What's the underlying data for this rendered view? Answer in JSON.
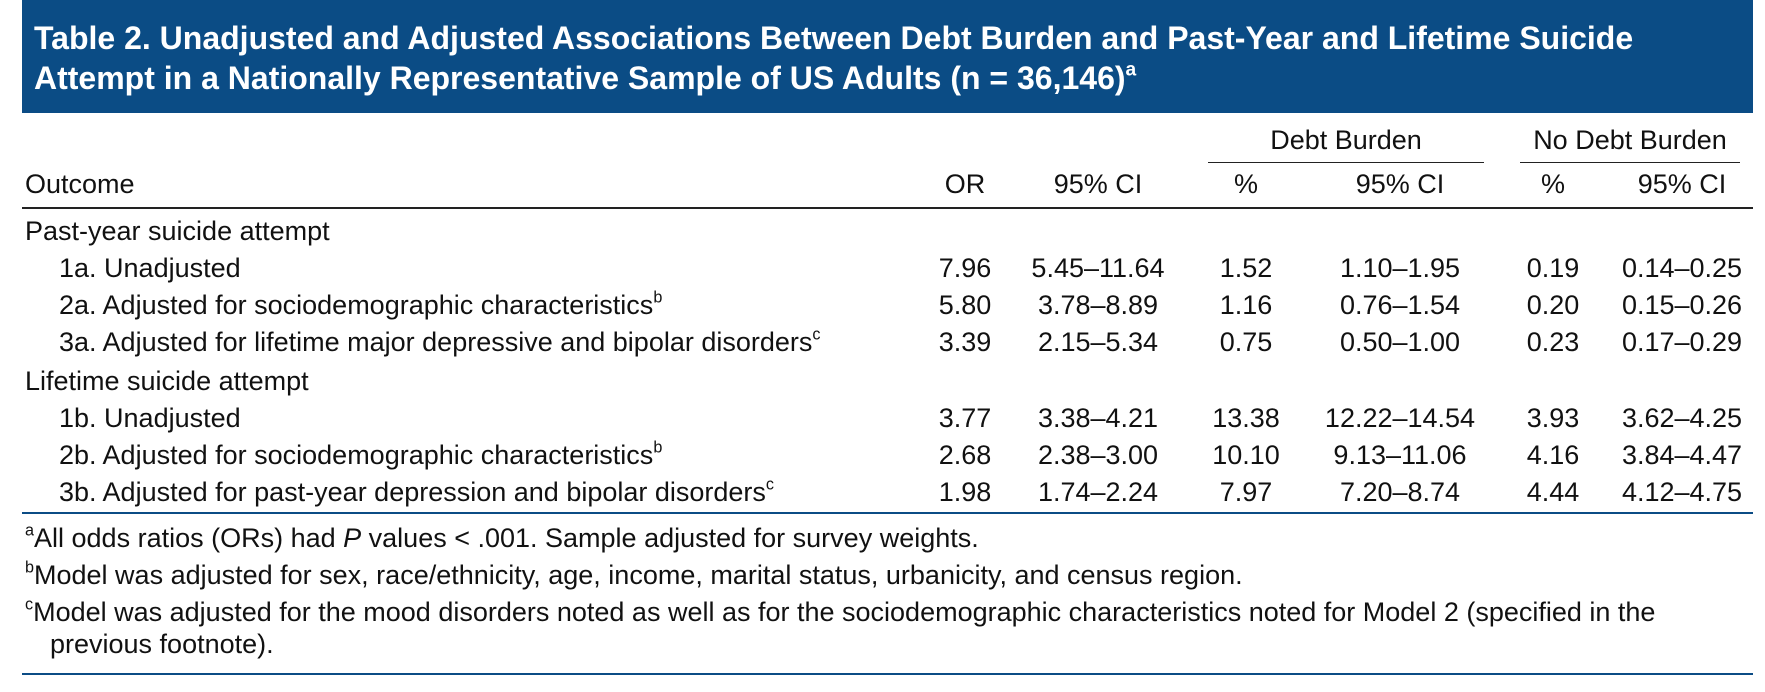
{
  "title": {
    "lines": [
      "Table 2. Unadjusted and Adjusted Associations Between Debt Burden and Past-Year and Lifetime Suicide",
      "Attempt in a Nationally Representative Sample of US Adults (n = 36,146)"
    ],
    "note": "a"
  },
  "column_groups": [
    "Debt Burden",
    "No Debt Burden"
  ],
  "columns": [
    "Outcome",
    "OR",
    "95% CI",
    "%",
    "95% CI",
    "%",
    "95% CI"
  ],
  "sections": [
    {
      "label": "Past-year suicide attempt",
      "rows": [
        {
          "label": "1a. Unadjusted",
          "cells": [
            "7.96",
            "5.45–11.64",
            "1.52",
            "1.10–1.95",
            "0.19",
            "0.14–0.25"
          ]
        },
        {
          "label": "2a. Adjusted for sociodemographic characteristics",
          "note": "b",
          "cells": [
            "5.80",
            "3.78–8.89",
            "1.16",
            "0.76–1.54",
            "0.20",
            "0.15–0.26"
          ]
        },
        {
          "label": "3a. Adjusted for lifetime major depressive and bipolar disorders",
          "note": "c",
          "cells": [
            "3.39",
            "2.15–5.34",
            "0.75",
            "0.50–1.00",
            "0.23",
            "0.17–0.29"
          ]
        }
      ]
    },
    {
      "label": "Lifetime suicide attempt",
      "rows": [
        {
          "label": "1b. Unadjusted",
          "cells": [
            "3.77",
            "3.38–4.21",
            "13.38",
            "12.22–14.54",
            "3.93",
            "3.62–4.25"
          ]
        },
        {
          "label": "2b. Adjusted for sociodemographic characteristics",
          "note": "b",
          "cells": [
            "2.68",
            "2.38–3.00",
            "10.10",
            "9.13–11.06",
            "4.16",
            "3.84–4.47"
          ]
        },
        {
          "label": "3b. Adjusted for past-year depression and bipolar disorders",
          "note": "c",
          "cells": [
            "1.98",
            "1.74–2.24",
            "7.97",
            "7.20–8.74",
            "4.44",
            "4.12–4.75"
          ]
        }
      ]
    }
  ],
  "footnotes": [
    {
      "mark": "a",
      "parts": [
        "All odds ratios (ORs) had ",
        "P",
        " values < .001. Sample adjusted for survey weights."
      ]
    },
    {
      "mark": "b",
      "parts": [
        "Model was adjusted for sex, race/ethnicity, age, income, marital status, urbanicity, and census region."
      ]
    },
    {
      "mark": "c",
      "parts": [
        "Model was adjusted for the mood disorders noted as well as for the sociodemographic characteristics noted for Model 2 (specified in the previous footnote)."
      ]
    }
  ]
}
